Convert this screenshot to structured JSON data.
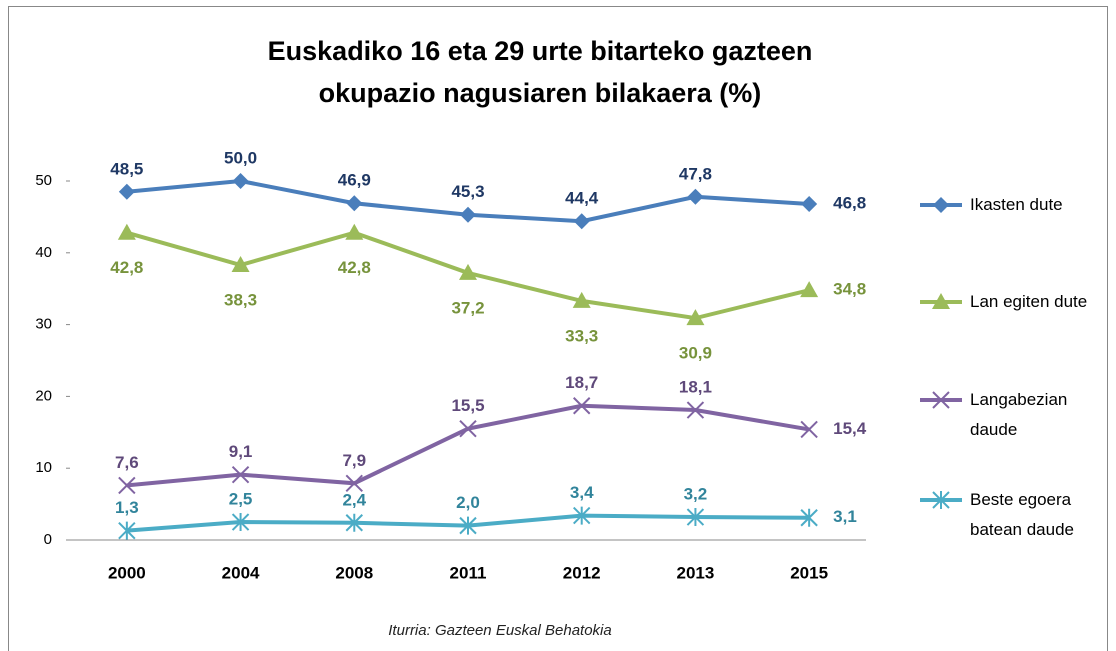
{
  "chart_data": {
    "type": "line",
    "title": "Euskadiko 16 eta 29 urte bitarteko gazteen okupazio nagusiaren bilakaera (%)",
    "source": "Iturria: Gazteen Euskal Behatokia",
    "categories": [
      "2000",
      "2004",
      "2008",
      "2011",
      "2012",
      "2013",
      "2015"
    ],
    "ylim": [
      0,
      50
    ],
    "yticks": [
      0,
      10,
      20,
      30,
      40,
      50
    ],
    "grid": false,
    "legend": "right",
    "series": [
      {
        "name": "Ikasten dute",
        "color": "#4a7ebb",
        "label_color": "#1f3864",
        "marker": "diamond",
        "values": [
          48.5,
          50.0,
          46.9,
          45.3,
          44.4,
          47.8,
          46.8
        ],
        "value_labels": [
          "48,5",
          "50,0",
          "46,9",
          "45,3",
          "44,4",
          "47,8",
          "46,8"
        ]
      },
      {
        "name": "Lan egiten dute",
        "color": "#9bbb59",
        "label_color": "#77933c",
        "marker": "triangle",
        "values": [
          42.8,
          38.3,
          42.8,
          37.2,
          33.3,
          30.9,
          34.8
        ],
        "value_labels": [
          "42,8",
          "38,3",
          "42,8",
          "37,2",
          "33,3",
          "30,9",
          "34,8"
        ]
      },
      {
        "name": "Langabezian daude",
        "color": "#8064a2",
        "label_color": "#5f497a",
        "marker": "x",
        "values": [
          7.6,
          9.1,
          7.9,
          15.5,
          18.7,
          18.1,
          15.4
        ],
        "value_labels": [
          "7,6",
          "9,1",
          "7,9",
          "15,5",
          "18,7",
          "18,1",
          "15,4"
        ]
      },
      {
        "name": "Beste egoera batean daude",
        "color": "#4bacc6",
        "label_color": "#31849b",
        "marker": "star",
        "values": [
          1.3,
          2.5,
          2.4,
          2.0,
          3.4,
          3.2,
          3.1
        ],
        "value_labels": [
          "1,3",
          "2,5",
          "2,4",
          "2,0",
          "3,4",
          "3,2",
          "3,1"
        ]
      }
    ]
  }
}
